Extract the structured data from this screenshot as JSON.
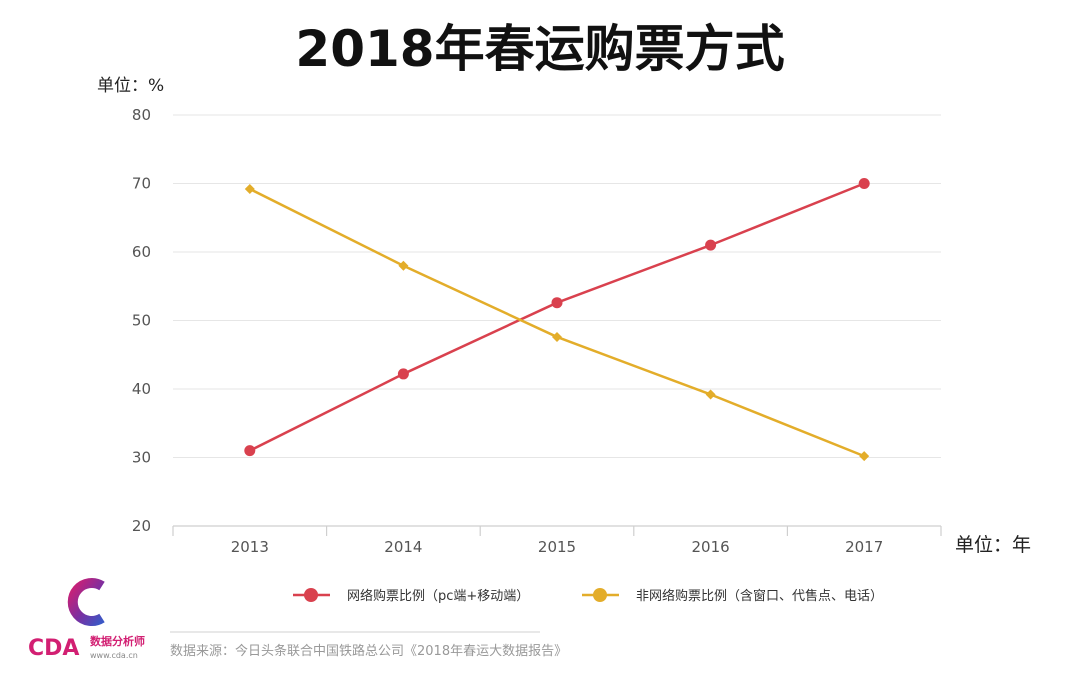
{
  "colors": {
    "online": "#d9414e",
    "offline": "#e3ad2a",
    "logo_magenta": "#d21f72",
    "logo_blue": "#3b57c5",
    "logo_purple": "#7a2fa1"
  },
  "logo": {
    "brand": "CDA",
    "tagline": "数据分析师",
    "url": "www.cda.cn"
  },
  "source_note": "数据来源：今日头条联合中国铁路总公司《2018年春运大数据报告》",
  "chart_data": {
    "type": "line",
    "title": "2018年春运购票方式",
    "ylabel": "单位：%",
    "xlabel": "单位：年",
    "categories": [
      "2013",
      "2014",
      "2015",
      "2016",
      "2017"
    ],
    "ylim": [
      20,
      80
    ],
    "yticks": [
      20,
      30,
      40,
      50,
      60,
      70,
      80
    ],
    "grid": true,
    "legend_position": "bottom",
    "series": [
      {
        "name": "网络购票比例（pc端+移动端）",
        "values": [
          31,
          42.2,
          52.6,
          61,
          70
        ],
        "marker": "circle",
        "color": "#d9414e"
      },
      {
        "name": "非网络购票比例（含窗口、代售点、电话）",
        "values": [
          69.2,
          58,
          47.6,
          39.2,
          30.2
        ],
        "marker": "diamond",
        "color": "#e3ad2a"
      }
    ]
  }
}
